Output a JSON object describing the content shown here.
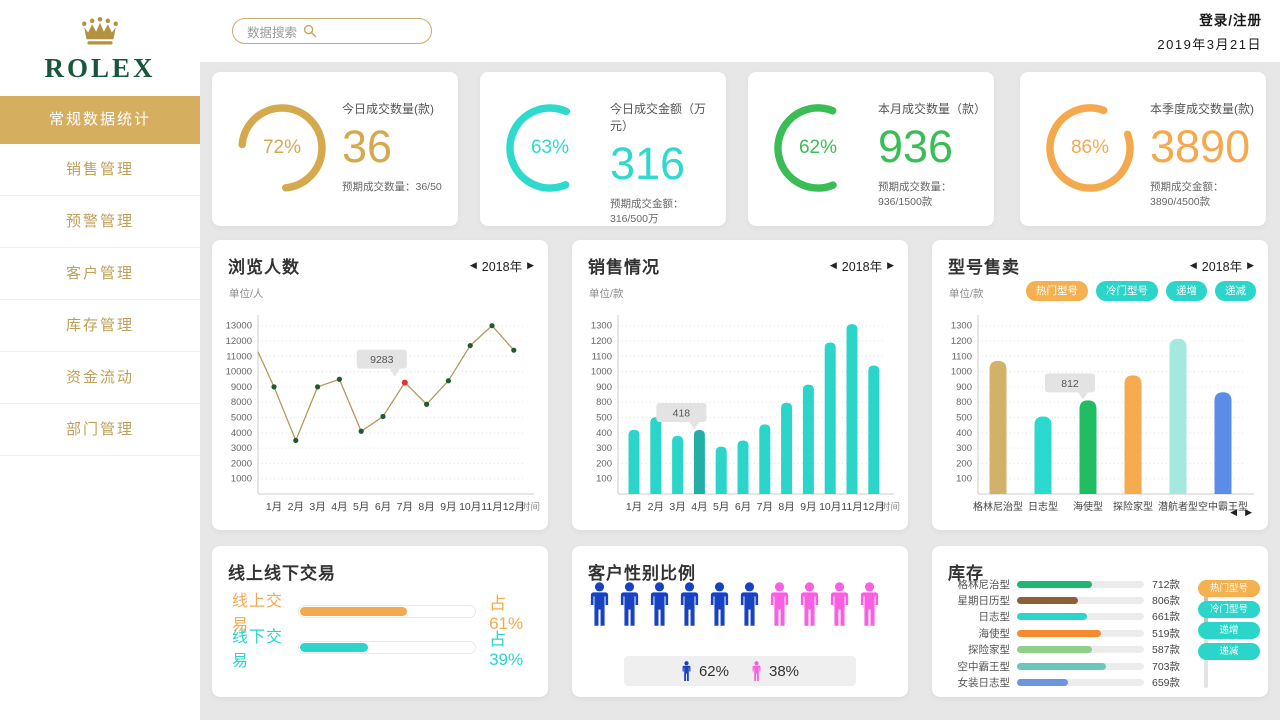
{
  "brand": {
    "name": "ROLEX",
    "crown_color": "#B2923F",
    "green": "#17573B"
  },
  "header": {
    "search_placeholder": "数据搜索",
    "login": "登录/注册",
    "date": "2019年3月21日",
    "prev_icon": "◀",
    "next_icon": "▶"
  },
  "sidebar": {
    "active_bg": "#D6AE5F",
    "items": [
      {
        "label": "常规数据统计",
        "active": true
      },
      {
        "label": "销售管理",
        "active": false
      },
      {
        "label": "预警管理",
        "active": false
      },
      {
        "label": "客户管理",
        "active": false
      },
      {
        "label": "库存管理",
        "active": false
      },
      {
        "label": "资金流动",
        "active": false
      },
      {
        "label": "部门管理",
        "active": false
      }
    ]
  },
  "kpis": [
    {
      "pct": "72%",
      "value": "36",
      "title": "今日成交数量(款)",
      "subtitle": "预期成交数量：36/50",
      "color": "#D5A94E"
    },
    {
      "pct": "63%",
      "value": "316",
      "title": "今日成交金额（万元）",
      "subtitle": "预期成交金额：316/500万",
      "color": "#2ED9CE"
    },
    {
      "pct": "62%",
      "value": "936",
      "title": "本月成交数量（款）",
      "subtitle": "预期成交数量：936/1500款",
      "color": "#3BBD55"
    },
    {
      "pct": "86%",
      "value": "3890",
      "title": "本季度成交数量(款)",
      "subtitle": "预期成交金额：3890/4500款",
      "color": "#F5A94F"
    }
  ],
  "chart_data": [
    {
      "type": "line",
      "title": "浏览人数",
      "year": "2018年",
      "unit": "单位/人",
      "time_label": "时间",
      "categories": [
        "1月",
        "2月",
        "3月",
        "4月",
        "5月",
        "6月",
        "7月",
        "8月",
        "9月",
        "10月",
        "11月",
        "12月"
      ],
      "y_ticks": [
        1000,
        2000,
        3000,
        4000,
        5000,
        8000,
        9000,
        10000,
        11000,
        12000,
        13000
      ],
      "start_value": 11300,
      "values": [
        9000,
        3500,
        9000,
        9500,
        4100,
        5200,
        9283,
        7600,
        9400,
        11700,
        13000,
        11400
      ],
      "highlight": {
        "index": 6,
        "label": "9283"
      },
      "line_color": "#B29A5B",
      "dot_color": "#1E5B33",
      "highlight_color": "#E8312A"
    },
    {
      "type": "bar",
      "title": "销售情况",
      "year": "2018年",
      "unit": "单位/款",
      "time_label": "时间",
      "categories": [
        "1月",
        "2月",
        "3月",
        "4月",
        "5月",
        "6月",
        "7月",
        "8月",
        "9月",
        "10月",
        "11月",
        "12月"
      ],
      "y_ticks": [
        100,
        200,
        300,
        400,
        500,
        800,
        900,
        1000,
        1100,
        1200,
        1300
      ],
      "values": [
        420,
        505,
        380,
        418,
        310,
        350,
        455,
        790,
        915,
        1190,
        1310,
        1040
      ],
      "bar_color": "#2BD5CA",
      "highlight": {
        "index": 3,
        "label": "418",
        "color": "#23AFA6"
      }
    },
    {
      "type": "bar",
      "title": "型号售卖",
      "year": "2018年",
      "unit": "单位/款",
      "legend": [
        {
          "label": "热门型号",
          "color": "#F5B04F"
        },
        {
          "label": "冷门型号",
          "color": "#2BD5CA"
        },
        {
          "label": "递增",
          "color": "#2BD5CA"
        },
        {
          "label": "递减",
          "color": "#2BD5CA"
        }
      ],
      "categories": [
        "格林尼治型",
        "日志型",
        "海使型",
        "探险家型",
        "潜航者型",
        "空中霸王型"
      ],
      "y_ticks": [
        100,
        200,
        300,
        400,
        500,
        800,
        900,
        1000,
        1100,
        1200,
        1300
      ],
      "values": [
        1070,
        520,
        812,
        975,
        1215,
        865
      ],
      "bar_colors": [
        "#D2B269",
        "#2BD9CE",
        "#22BD63",
        "#F6AB4E",
        "#A5E8E0",
        "#5B8DE8"
      ],
      "highlight": {
        "index": 2,
        "label": "812"
      },
      "pager_prev": "◀",
      "pager_next": "▶"
    }
  ],
  "transactions": {
    "title": "线上线下交易",
    "rows": [
      {
        "label": "线上交易",
        "pct_label": "占61%",
        "fill_pct": 61,
        "color": "#F5A94F"
      },
      {
        "label": "线下交易",
        "pct_label": "占39%",
        "fill_pct": 39,
        "color": "#2BD5CA"
      }
    ]
  },
  "gender": {
    "title": "客户性别比例",
    "male_count": 6,
    "female_count": 4,
    "male_pct": "62%",
    "female_pct": "38%",
    "male_color": "#1742C2",
    "female_color": "#FA5FE2"
  },
  "inventory": {
    "title": "库存",
    "legend": [
      {
        "label": "热门型号",
        "color": "#F5B04F"
      },
      {
        "label": "冷门型号",
        "color": "#2BD5CA"
      },
      {
        "label": "递增",
        "color": "#2BD5CA"
      },
      {
        "label": "递减",
        "color": "#2BD5CA"
      }
    ],
    "rows": [
      {
        "label": "格林尼治型",
        "value": "712款",
        "fill_pct": 59,
        "color": "#21B573"
      },
      {
        "label": "星期日历型",
        "value": "806款",
        "fill_pct": 48,
        "color": "#8A6138"
      },
      {
        "label": "日志型",
        "value": "661款",
        "fill_pct": 55,
        "color": "#2BD5CA"
      },
      {
        "label": "海使型",
        "value": "519款",
        "fill_pct": 66,
        "color": "#F58B2E"
      },
      {
        "label": "探险家型",
        "value": "587款",
        "fill_pct": 59,
        "color": "#90CE8C"
      },
      {
        "label": "空中霸王型",
        "value": "703款",
        "fill_pct": 70,
        "color": "#6BC7BC"
      },
      {
        "label": "女装日志型",
        "value": "659款",
        "fill_pct": 40,
        "color": "#6C96DC"
      }
    ]
  }
}
